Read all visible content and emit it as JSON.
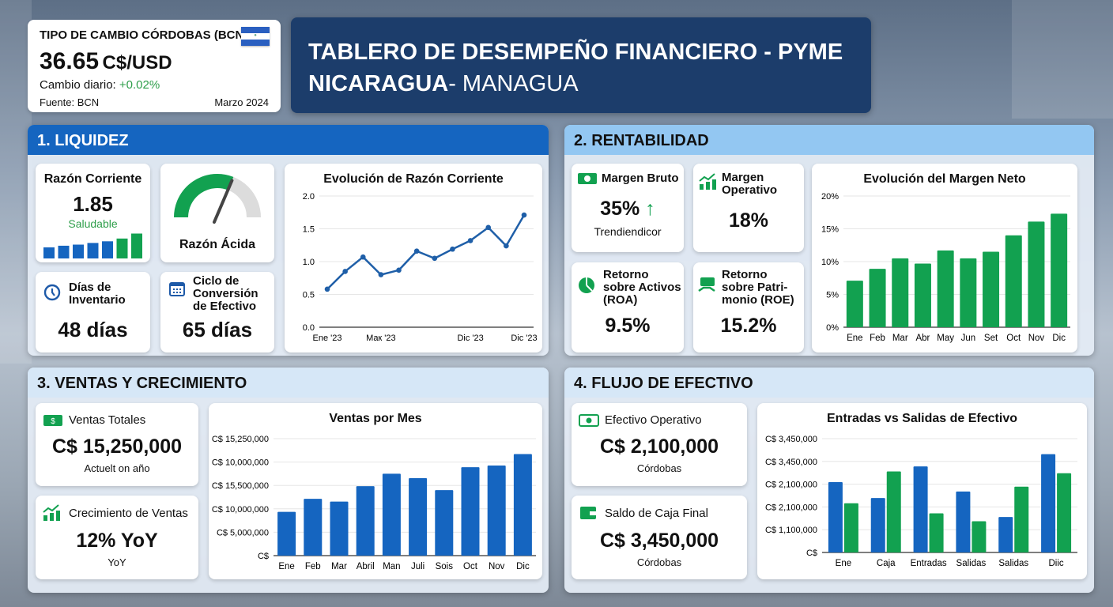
{
  "exchange": {
    "title": "TIPO DE CAMBIO CÓRDOBAS (BCN)",
    "value": "36.65",
    "unit": "C$/USD",
    "change_label": "Cambio diario:",
    "change_value": "+0.02%",
    "source": "Fuente: BCN",
    "date": "Marzo 2024",
    "flag": "nicaragua-flag"
  },
  "banner": {
    "line1": "TABLERO DE DESEMPEÑO FINANCIERO - PYME",
    "line2_bold": "NICARAGUA",
    "line2_rest": "- MANAGUA"
  },
  "colors": {
    "blue": "#1565c0",
    "green": "#12a150",
    "navy": "#1c3d6b",
    "light_header": "#93c7f2",
    "pale_header": "#d6e7f7"
  },
  "liquidez": {
    "header": "1. LIQUIDEZ",
    "razon_corriente": {
      "label": "Razón Corriente",
      "value": "1.85",
      "status": "Saludable",
      "mini_bars": [
        2,
        2.3,
        2.5,
        2.8,
        3.1,
        3.6,
        4.5
      ]
    },
    "razon_acida": {
      "label": "Razón Ácida",
      "gauge_fraction": 0.62
    },
    "dias_inventario": {
      "label": "Días de Inventario",
      "value": "48 días",
      "icon": "clock-icon"
    },
    "ciclo": {
      "label": "Ciclo de Conversión de Efectivo",
      "value": "65 días",
      "icon": "calendar-icon"
    }
  },
  "rentabilidad": {
    "header": "2. RENTABILIDAD",
    "margen_bruto": {
      "label": "Margen Bruto",
      "value": "35%",
      "sub": "Trendiendicor",
      "icon": "money-icon",
      "trend": "up-arrow-icon"
    },
    "margen_operativo": {
      "label": "Margen Operativo",
      "value": "18%",
      "icon": "growth-chart-icon"
    },
    "roa": {
      "label": "Retorno sobre Activos (ROA)",
      "value": "9.5%",
      "icon": "pie-chart-icon"
    },
    "roe": {
      "label": "Retorno sobre Patri-monio (ROE)",
      "value": "15.2%",
      "icon": "money-hand-icon"
    }
  },
  "ventas": {
    "header": "3. VENTAS Y CRECIMIENTO",
    "totales": {
      "label": "Ventas Totales",
      "value": "C$ 15,250,000",
      "sub": "Actuelt on año",
      "icon": "money-icon"
    },
    "crecimiento": {
      "label": "Crecimiento de Ventas",
      "value": "12% YoY",
      "sub": "YoY",
      "icon": "growth-chart-icon"
    }
  },
  "flujo": {
    "header": "4. FLUJO DE EFECTIVO",
    "operativo": {
      "label": "Efectivo Operativo",
      "value": "C$ 2,100,000",
      "sub": "Córdobas",
      "icon": "money-icon"
    },
    "saldo": {
      "label": "Saldo de Caja Final",
      "value": "C$ 3,450,000",
      "sub": "Córdobas",
      "icon": "wallet-icon"
    }
  },
  "chart_data": [
    {
      "id": "razon",
      "type": "line",
      "title": "Evolución de Razón Corriente",
      "ylim": [
        0,
        2
      ],
      "yticks": [
        "0.0",
        "0.5",
        "1.0",
        "1.5",
        "2.0"
      ],
      "xtick_labels": [
        "Ene '23",
        "Maк '23",
        "Dic '23",
        "Dic '23"
      ],
      "values": [
        0.58,
        0.85,
        1.07,
        0.8,
        0.87,
        1.16,
        1.05,
        1.19,
        1.32,
        1.52,
        1.24,
        1.71
      ],
      "grid": true
    },
    {
      "id": "margen",
      "type": "bar",
      "title": "Evolución del Margen Neto",
      "ylim": [
        0,
        20
      ],
      "yticks": [
        "0%",
        "5%",
        "10%",
        "15%",
        "20%"
      ],
      "categories": [
        "Ene",
        "Feb",
        "Mar",
        "Abr",
        "May",
        "Jun",
        "Set",
        "Oct",
        "Nov",
        "Dic"
      ],
      "values": [
        7.1,
        8.9,
        10.5,
        9.7,
        11.7,
        10.5,
        11.5,
        14,
        16.1,
        17.3
      ],
      "grid": true
    },
    {
      "id": "ventas",
      "type": "bar",
      "title": "Ventas por Mes",
      "ylim": [
        0,
        5
      ],
      "yticks": [
        "C$",
        "C$ 5,000,000",
        "C$ 10,000,000",
        "C$ 15,500,000",
        "C$ 10,000,000",
        "C$ 15,250,000"
      ],
      "categories": [
        "Ene",
        "Feb",
        "Mar",
        "Abril",
        "Man",
        "Juli",
        "Sois",
        "Oct",
        "Nov",
        "Dic"
      ],
      "values": [
        1.87,
        2.43,
        2.31,
        2.97,
        3.5,
        3.31,
        2.8,
        3.78,
        3.85,
        4.34
      ],
      "grid": true
    },
    {
      "id": "flujo",
      "type": "bar",
      "title": "Entradas vs Salidas de Efectivo",
      "ylim": [
        0,
        5
      ],
      "yticks": [
        "C$",
        "C$ 1,100,000",
        "C$ 2,100,000",
        "C$ 2,100,000",
        "C$ 3,450,000",
        "C$ 3,450,000"
      ],
      "categories": [
        "Ene",
        "Caja",
        "Entradas",
        "Salidas",
        "Salidas",
        "Diic"
      ],
      "series": [
        {
          "values": [
            3.09,
            2.39,
            3.78,
            2.68,
            1.56,
            4.32
          ]
        },
        {
          "values": [
            2.16,
            3.56,
            1.72,
            1.37,
            2.89,
            3.48
          ]
        }
      ],
      "grid": true
    }
  ]
}
